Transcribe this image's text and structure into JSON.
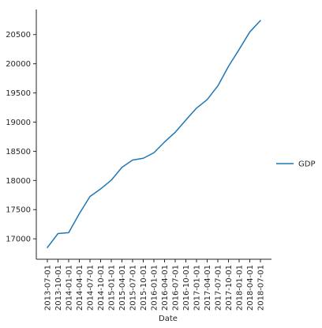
{
  "chart_data": {
    "type": "line",
    "xlabel": "Date",
    "ylabel": "",
    "title": "",
    "categories": [
      "2013-07-01",
      "2013-10-01",
      "2014-01-01",
      "2014-04-01",
      "2014-07-01",
      "2014-10-01",
      "2015-01-01",
      "2015-04-01",
      "2015-07-01",
      "2015-10-01",
      "2016-01-01",
      "2016-04-01",
      "2016-07-01",
      "2016-10-01",
      "2017-01-01",
      "2017-04-01",
      "2017-07-01",
      "2017-10-01",
      "2018-01-01",
      "2018-04-01",
      "2018-07-01"
    ],
    "series": [
      {
        "name": "GDP",
        "color": "#1f77b4",
        "values": [
          16850,
          17090,
          17105,
          17430,
          17725,
          17855,
          18005,
          18225,
          18350,
          18380,
          18475,
          18660,
          18825,
          19035,
          19240,
          19385,
          19620,
          19955,
          20245,
          20545,
          20740
        ]
      }
    ],
    "yticks": [
      17000,
      17500,
      18000,
      18500,
      19000,
      19500,
      20000,
      20500
    ],
    "ylim": [
      16650,
      20930
    ],
    "grid": false,
    "legend": "right"
  }
}
